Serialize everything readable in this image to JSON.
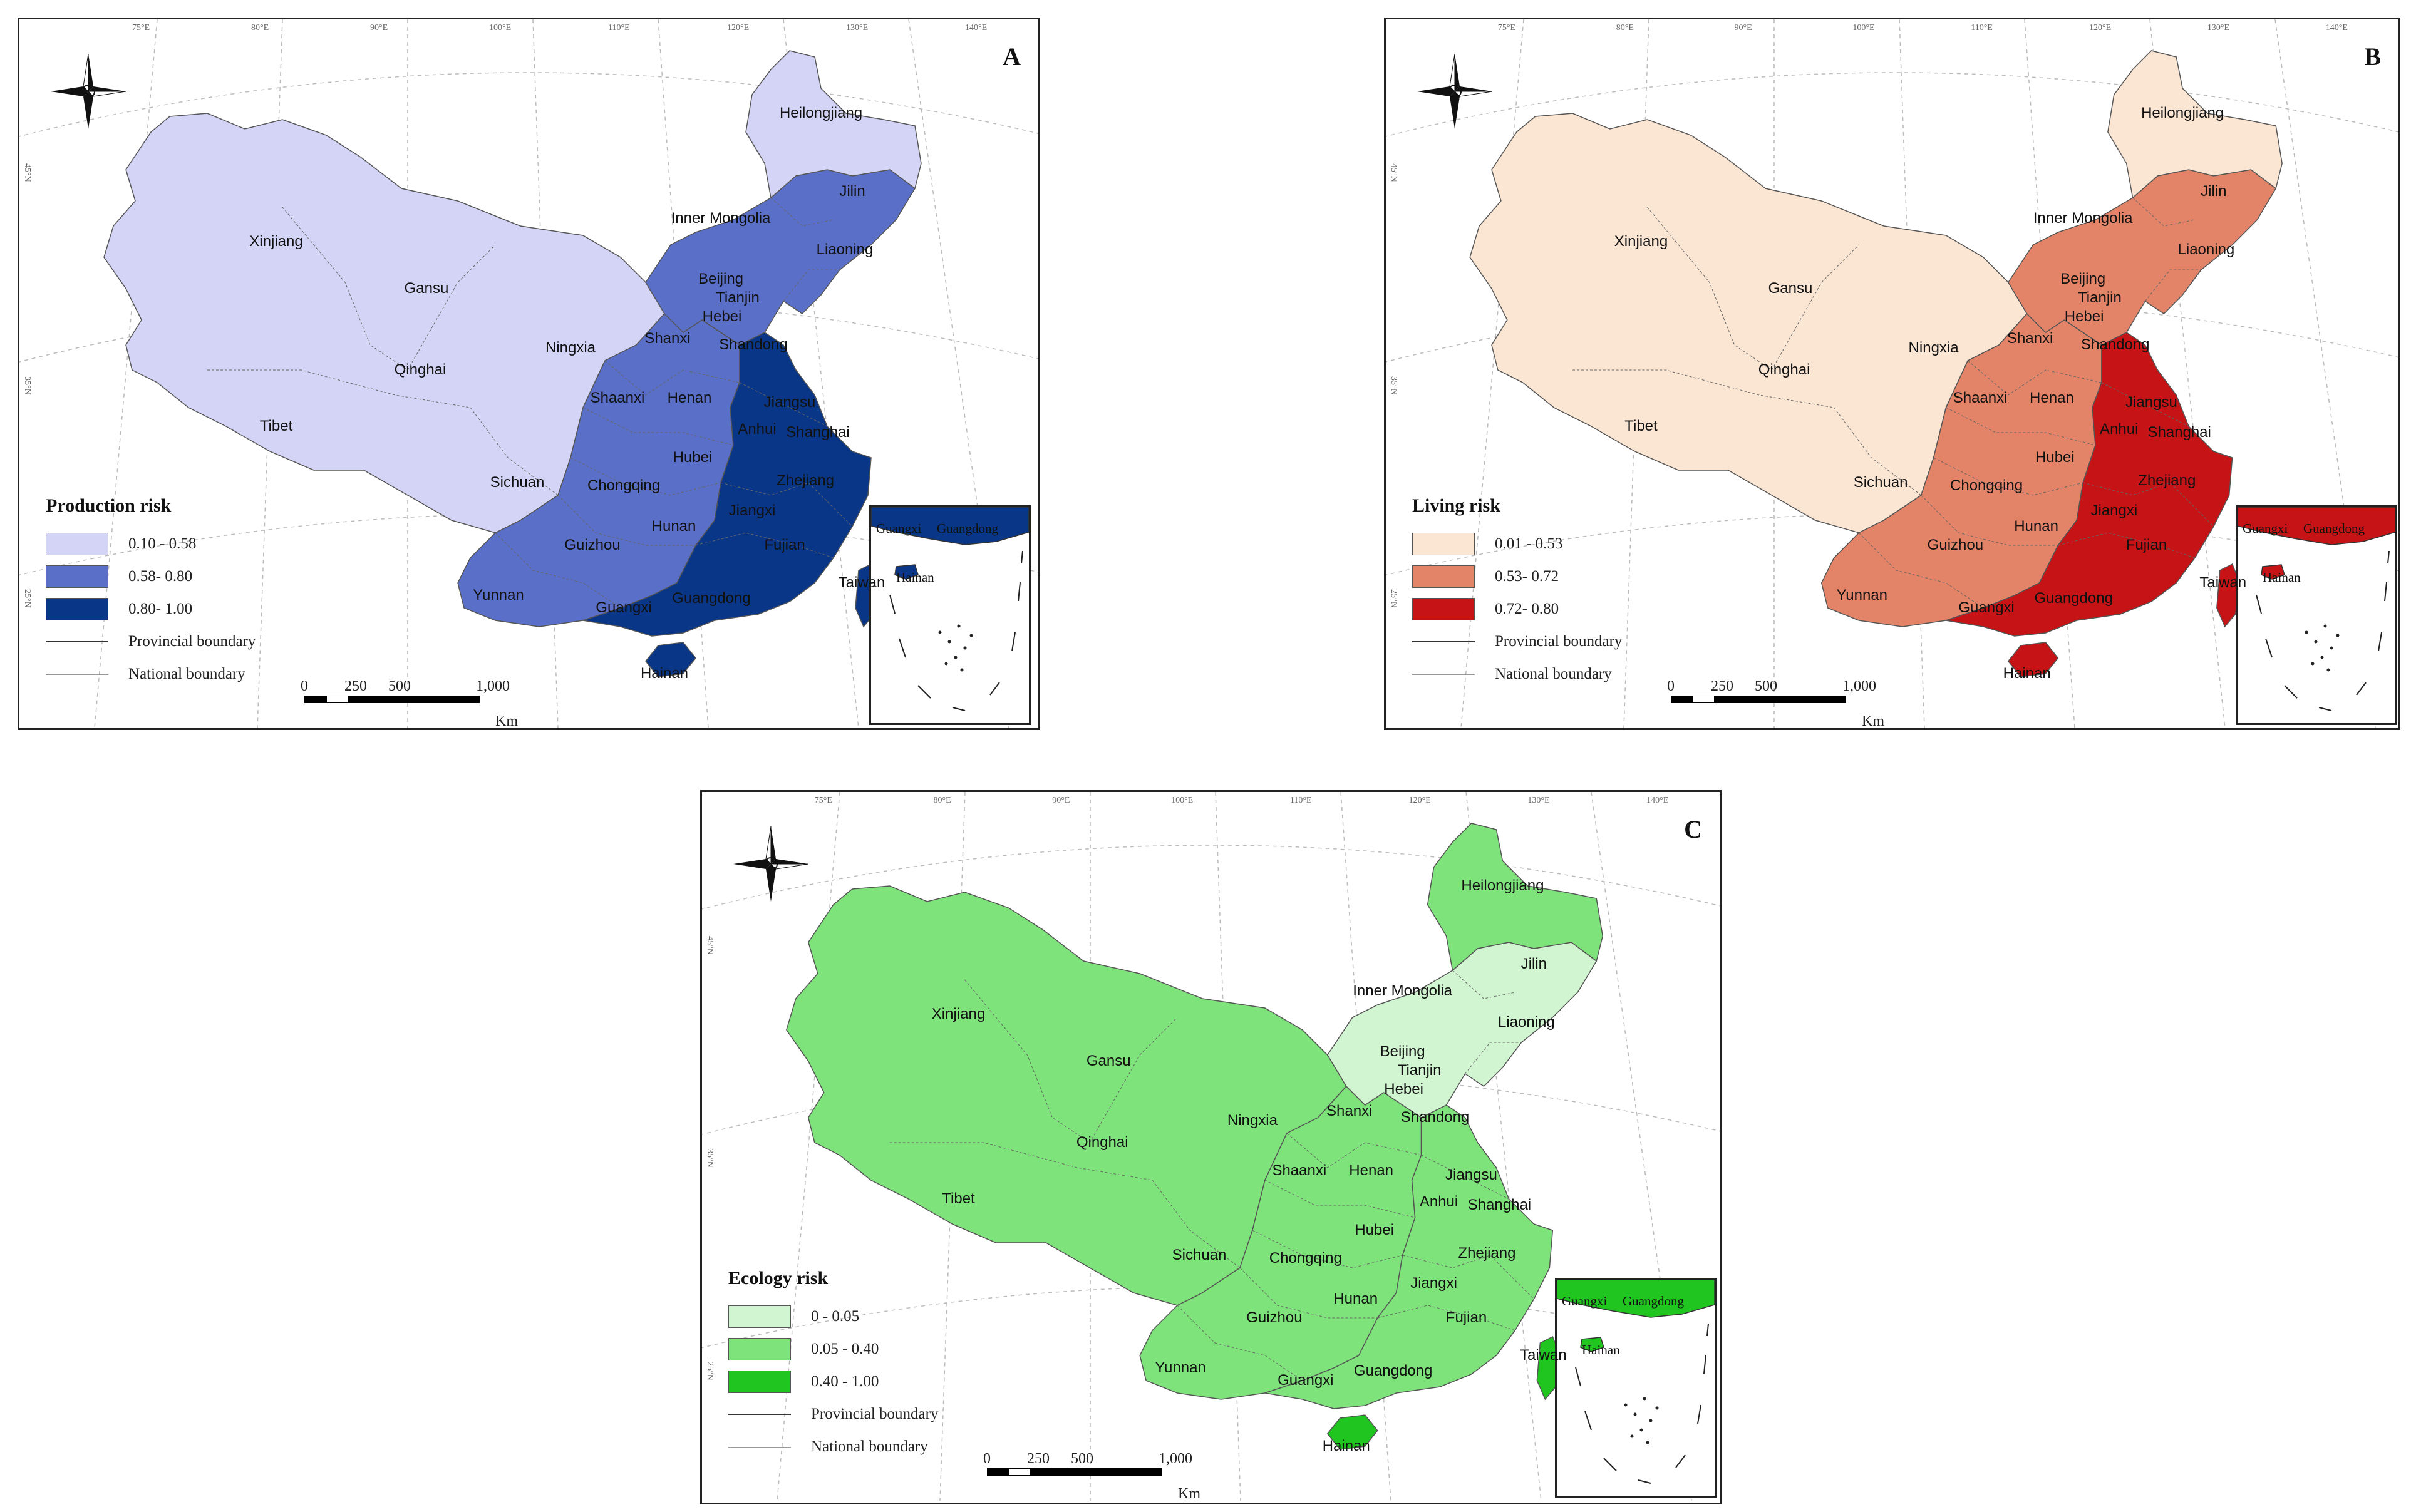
{
  "figure": {
    "panels": [
      {
        "id": "A",
        "letter": "A",
        "legend_title": "Production risk",
        "classes": [
          {
            "label": "0.10 - 0.58",
            "color": "#d4d4f7"
          },
          {
            "label": "0.58- 0.80",
            "color": "#5a6fc8"
          },
          {
            "label": "0.80- 1.00",
            "color": "#0a3687"
          }
        ],
        "provincial_boundary_label": "Provincial boundary",
        "national_boundary_label": "National boundary",
        "scale": {
          "ticks": [
            "0",
            "250",
            "500",
            "1,000"
          ],
          "unit": "Km"
        },
        "region_class": {
          "west": 0,
          "middle": 1,
          "east": 2,
          "northeast": 1,
          "far_northeast": 0,
          "south_islands": 2
        }
      },
      {
        "id": "B",
        "letter": "B",
        "legend_title": "Living risk",
        "classes": [
          {
            "label": "0.01 - 0.53",
            "color": "#fbe5d3"
          },
          {
            "label": "0.53- 0.72",
            "color": "#e38468"
          },
          {
            "label": "0.72- 0.80",
            "color": "#c61416"
          }
        ],
        "provincial_boundary_label": "Provincial boundary",
        "national_boundary_label": "National boundary",
        "scale": {
          "ticks": [
            "0",
            "250",
            "500",
            "1,000"
          ],
          "unit": "Km"
        },
        "region_class": {
          "west": 0,
          "middle": 1,
          "east": 2,
          "northeast": 1,
          "far_northeast": 0,
          "south_islands": 2
        }
      },
      {
        "id": "C",
        "letter": "C",
        "legend_title": "Ecology risk",
        "classes": [
          {
            "label": "0 - 0.05",
            "color": "#d0f5d0"
          },
          {
            "label": "0.05 - 0.40",
            "color": "#7ee37b"
          },
          {
            "label": "0.40 - 1.00",
            "color": "#20c520"
          }
        ],
        "provincial_boundary_label": "Provincial boundary",
        "national_boundary_label": "National boundary",
        "scale": {
          "ticks": [
            "0",
            "250",
            "500",
            "1,000"
          ],
          "unit": "Km"
        },
        "region_class": {
          "west": 1,
          "middle": 1,
          "east": 1,
          "northeast": 0,
          "far_northeast": 1,
          "south_islands": 2
        }
      }
    ],
    "province_labels": [
      "Heilongjiang",
      "Jilin",
      "Liaoning",
      "Inner Mongolia",
      "Beijing",
      "Tianjin",
      "Hebei",
      "Xinjiang",
      "Gansu",
      "Shanxi",
      "Ningxia",
      "Shandong",
      "Qinghai",
      "Shaanxi",
      "Henan",
      "Jiangsu",
      "Tibet",
      "Anhui",
      "Shanghai",
      "Hubei",
      "Sichuan",
      "Chongqing",
      "Zhejiang",
      "Jiangxi",
      "Hunan",
      "Fujian",
      "Guizhou",
      "Yunnan",
      "Guangxi",
      "Guangdong",
      "Taiwan",
      "Hainan"
    ],
    "inset_labels": [
      "Guangxi",
      "Guangdong",
      "Hainan"
    ],
    "graticule_labels": {
      "top": [
        "75°E",
        "80°E",
        "90°E",
        "100°E",
        "110°E",
        "120°E",
        "130°E",
        "140°E"
      ],
      "left": [
        "45°N",
        "35°N",
        "25°N"
      ]
    }
  }
}
